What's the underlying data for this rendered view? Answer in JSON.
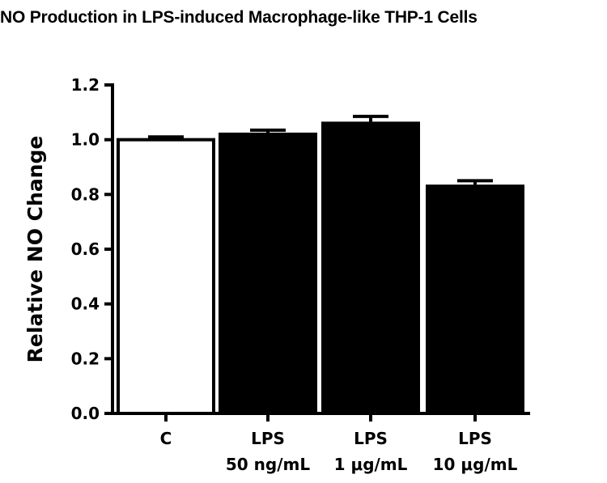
{
  "chart_data": {
    "type": "bar",
    "title": "NO Production in LPS-induced Macrophage-like THP-1 Cells",
    "xlabel": "",
    "ylabel": "Relative NO Change",
    "categories": [
      [
        "C",
        ""
      ],
      [
        "LPS",
        "50 ng/mL"
      ],
      [
        "LPS",
        "1 μg/mL"
      ],
      [
        "LPS",
        "10 μg/mL"
      ]
    ],
    "values": [
      1.0,
      1.02,
      1.06,
      0.83
    ],
    "errors": [
      0.01,
      0.015,
      0.025,
      0.02
    ],
    "fills": [
      "#ffffff",
      "#000000",
      "#000000",
      "#000000"
    ],
    "ylim": [
      0,
      1.2
    ],
    "yticks": [
      "0.0",
      "0.2",
      "0.4",
      "0.6",
      "0.8",
      "1.0",
      "1.2"
    ],
    "grid": false
  }
}
